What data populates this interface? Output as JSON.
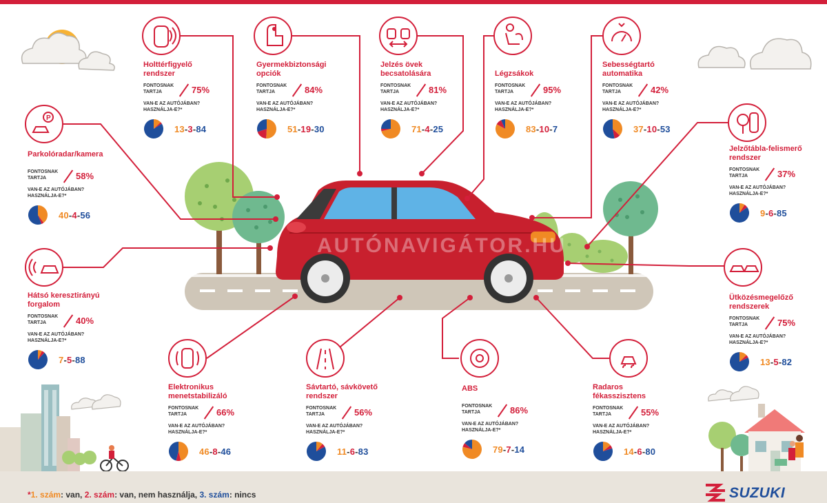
{
  "colors": {
    "accent": "#d31f3a",
    "orange": "#f08a24",
    "blue": "#1f4e9b"
  },
  "labels": {
    "important": "FONTOSNAK\nTARTJA",
    "question": "VAN-E AZ AUTÓJÁBAN?\nHASZNÁLJA-E?*"
  },
  "watermark": "AUTÓNAVIGÁTOR.HU",
  "footnote": {
    "star": "*",
    "n1": "1. szám",
    "t1": ": van, ",
    "n2": "2. szám",
    "t2": ": van, nem használja, ",
    "n3": "3. szám",
    "t3": ": nincs"
  },
  "brand": "SUZUKI",
  "features": [
    {
      "key": "holtter",
      "title": "Holttérfigyelő\nrendszer",
      "icon": "blind-spot-icon",
      "important": "75%",
      "n": [
        13,
        3,
        84
      ]
    },
    {
      "key": "gyermek",
      "title": "Gyermekbiztonsági\nopciók",
      "icon": "child-seat-icon",
      "important": "84%",
      "n": [
        51,
        19,
        30
      ]
    },
    {
      "key": "ovek",
      "title": "Jelzés övek\nbecsatolására",
      "icon": "seatbelt-icon",
      "important": "81%",
      "n": [
        71,
        4,
        25
      ]
    },
    {
      "key": "legzsak",
      "title": "Légzsákok",
      "icon": "airbag-icon",
      "important": "95%",
      "n": [
        83,
        10,
        7
      ]
    },
    {
      "key": "sebesseg",
      "title": "Sebességtartó\nautomatika",
      "icon": "cruise-control-icon",
      "important": "42%",
      "n": [
        37,
        10,
        53
      ]
    },
    {
      "key": "parkolo",
      "title": "Parkolóradar/kamera",
      "icon": "parking-icon",
      "important": "58%",
      "n": [
        40,
        4,
        56
      ]
    },
    {
      "key": "jelzotabla",
      "title": "Jelzőtábla-felismerő\nrendszer",
      "icon": "traffic-sign-icon",
      "important": "37%",
      "n": [
        9,
        6,
        85
      ]
    },
    {
      "key": "hatso",
      "title": "Hátsó keresztirányú\nforgalom",
      "icon": "rear-traffic-icon",
      "important": "40%",
      "n": [
        7,
        5,
        88
      ]
    },
    {
      "key": "utkozes",
      "title": "Ütközésmegelőző\nrendszerek",
      "icon": "collision-icon",
      "important": "75%",
      "n": [
        13,
        5,
        82
      ]
    },
    {
      "key": "esp",
      "title": "Elektronikus\nmenetstabilizáló",
      "icon": "stability-icon",
      "important": "66%",
      "n": [
        46,
        8,
        46
      ]
    },
    {
      "key": "savtarto",
      "title": "Sávtartó, sávkövető\nrendszer",
      "icon": "lane-icon",
      "important": "56%",
      "n": [
        11,
        6,
        83
      ]
    },
    {
      "key": "abs",
      "title": "ABS",
      "icon": "abs-icon",
      "important": "86%",
      "n": [
        79,
        7,
        14
      ]
    },
    {
      "key": "radaros",
      "title": "Radaros\nfékasszisztens",
      "icon": "radar-brake-icon",
      "important": "55%",
      "n": [
        14,
        6,
        80
      ]
    }
  ]
}
